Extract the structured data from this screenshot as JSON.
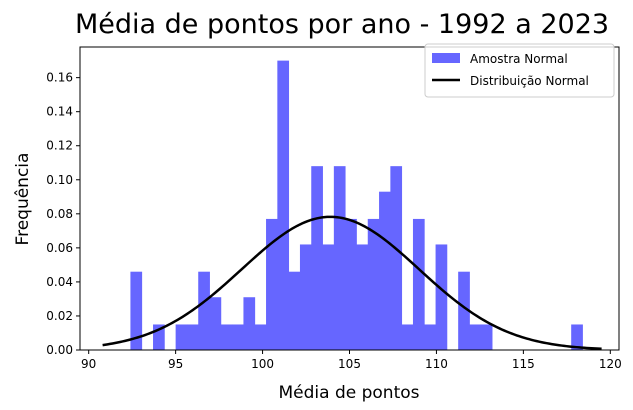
{
  "chart_data": {
    "type": "bar",
    "title": "Média de pontos por ano - 1992 a 2023",
    "xlabel": "Média de pontos",
    "ylabel": "Frequência",
    "xlim": [
      89.5,
      120.5
    ],
    "ylim": [
      0,
      0.178
    ],
    "xticks": [
      90,
      95,
      100,
      105,
      110,
      115,
      120
    ],
    "yticks": [
      0.0,
      0.02,
      0.04,
      0.06,
      0.08,
      0.1,
      0.12,
      0.14,
      0.16
    ],
    "ytick_labels": [
      "0.00",
      "0.02",
      "0.04",
      "0.06",
      "0.08",
      "0.10",
      "0.12",
      "0.14",
      "0.16"
    ],
    "grid": false,
    "legend_position": "top-right",
    "series": [
      {
        "name": "Amostra Normal",
        "kind": "histogram",
        "color": "#6666ff",
        "bin_width": 0.65,
        "bins": [
          {
            "x0": 92.4,
            "value": 0.046
          },
          {
            "x0": 93.7,
            "value": 0.015
          },
          {
            "x0": 95.0,
            "value": 0.015
          },
          {
            "x0": 95.65,
            "value": 0.015
          },
          {
            "x0": 96.3,
            "value": 0.046
          },
          {
            "x0": 96.95,
            "value": 0.031
          },
          {
            "x0": 97.6,
            "value": 0.015
          },
          {
            "x0": 98.25,
            "value": 0.015
          },
          {
            "x0": 98.9,
            "value": 0.031
          },
          {
            "x0": 99.55,
            "value": 0.015
          },
          {
            "x0": 100.2,
            "value": 0.077
          },
          {
            "x0": 100.85,
            "value": 0.17
          },
          {
            "x0": 101.5,
            "value": 0.046
          },
          {
            "x0": 102.15,
            "value": 0.062
          },
          {
            "x0": 102.8,
            "value": 0.108
          },
          {
            "x0": 103.45,
            "value": 0.062
          },
          {
            "x0": 104.1,
            "value": 0.108
          },
          {
            "x0": 104.75,
            "value": 0.077
          },
          {
            "x0": 105.4,
            "value": 0.062
          },
          {
            "x0": 106.05,
            "value": 0.077
          },
          {
            "x0": 106.7,
            "value": 0.093
          },
          {
            "x0": 107.35,
            "value": 0.108
          },
          {
            "x0": 108.0,
            "value": 0.015
          },
          {
            "x0": 108.65,
            "value": 0.077
          },
          {
            "x0": 109.3,
            "value": 0.015
          },
          {
            "x0": 109.95,
            "value": 0.062
          },
          {
            "x0": 111.25,
            "value": 0.046
          },
          {
            "x0": 111.9,
            "value": 0.015
          },
          {
            "x0": 112.55,
            "value": 0.015
          },
          {
            "x0": 117.75,
            "value": 0.015
          }
        ]
      },
      {
        "name": "Distribuição Normal",
        "kind": "line",
        "color": "#000000",
        "mean": 103.9,
        "std": 5.1,
        "x_range": [
          90.8,
          119.5
        ]
      }
    ]
  }
}
